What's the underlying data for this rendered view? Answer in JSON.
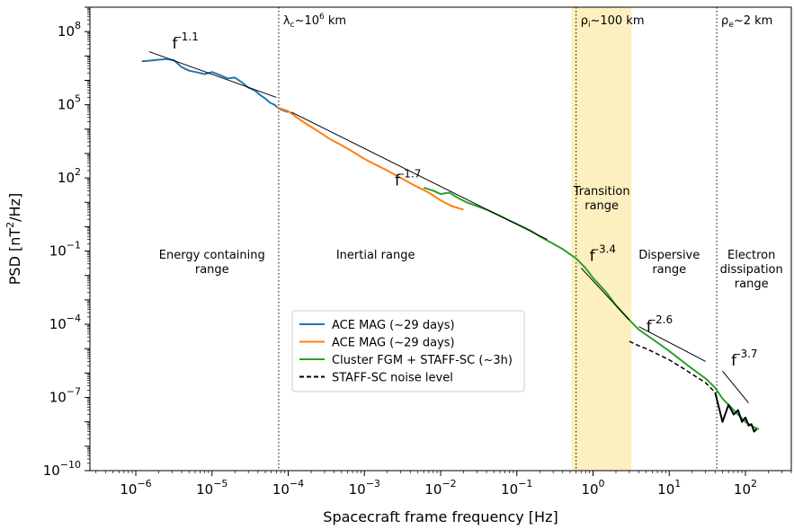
{
  "chart_data": {
    "type": "line",
    "title": "",
    "xlabel": "Spacecraft frame frequency [Hz]",
    "ylabel_main": "PSD [nT",
    "ylabel_sup": "2",
    "ylabel_end": "/Hz]",
    "xscale": "log",
    "yscale": "log",
    "xlim": [
      2.5e-07,
      400
    ],
    "ylim": [
      1e-10,
      1000000000.0
    ],
    "grid": false,
    "legend_position": "center-left",
    "x_ticks": [
      {
        "base": "10",
        "exp": "−6",
        "value": 1e-06
      },
      {
        "base": "10",
        "exp": "−5",
        "value": 1e-05
      },
      {
        "base": "10",
        "exp": "−4",
        "value": 0.0001
      },
      {
        "base": "10",
        "exp": "−3",
        "value": 0.001
      },
      {
        "base": "10",
        "exp": "−2",
        "value": 0.01
      },
      {
        "base": "10",
        "exp": "−1",
        "value": 0.1
      },
      {
        "base": "10",
        "exp": "0",
        "value": 1
      },
      {
        "base": "10",
        "exp": "1",
        "value": 10
      },
      {
        "base": "10",
        "exp": "2",
        "value": 100
      }
    ],
    "y_ticks": [
      {
        "base": "10",
        "exp": "−10",
        "value": 1e-10
      },
      {
        "base": "10",
        "exp": "−7",
        "value": 1e-07
      },
      {
        "base": "10",
        "exp": "−4",
        "value": 0.0001
      },
      {
        "base": "10",
        "exp": "−1",
        "value": 0.1
      },
      {
        "base": "10",
        "exp": "2",
        "value": 100
      },
      {
        "base": "10",
        "exp": "5",
        "value": 100000.0
      },
      {
        "base": "10",
        "exp": "8",
        "value": 100000000.0
      }
    ],
    "series": [
      {
        "name": "ACE MAG (~29 days)",
        "color": "#1f77b4",
        "style": "solid",
        "x": [
          1.2e-06,
          1.6e-06,
          2e-06,
          2.6e-06,
          3.2e-06,
          4e-06,
          5e-06,
          6.5e-06,
          8e-06,
          1e-05,
          1.3e-05,
          1.6e-05,
          2e-05,
          2.5e-05,
          3e-05,
          3.6e-05,
          4.3e-05,
          5e-05,
          5.8e-05,
          6.6e-05,
          7.5e-05,
          8.5e-05,
          0.0001
        ],
        "y": [
          6000000.0,
          6500000.0,
          7000000.0,
          7500000.0,
          6500000.0,
          3500000.0,
          2500000.0,
          2100000.0,
          1800000.0,
          2200000.0,
          1600000.0,
          1200000.0,
          1300000.0,
          800000.0,
          500000.0,
          400000.0,
          250000.0,
          180000.0,
          120000.0,
          100000.0,
          70000.0,
          60000.0,
          50000.0
        ]
      },
      {
        "name": "ACE MAG (~29 days)",
        "color": "#ff7f0e",
        "style": "solid",
        "x": [
          7e-05,
          0.0001,
          0.00013,
          0.00018,
          0.00025,
          0.00035,
          0.0005,
          0.0007,
          0.001,
          0.0014,
          0.002,
          0.003,
          0.0045,
          0.007,
          0.01,
          0.014,
          0.02
        ],
        "y": [
          80000.0,
          55000.0,
          30000.0,
          15000.0,
          8000.0,
          4000.0,
          2200.0,
          1200.0,
          600,
          350,
          200,
          100,
          50,
          25,
          12,
          7,
          5
        ]
      },
      {
        "name": "Cluster FGM + STAFF-SC (~3h)",
        "color": "#2ca02c",
        "style": "solid",
        "x": [
          0.006,
          0.008,
          0.01,
          0.013,
          0.017,
          0.022,
          0.03,
          0.04,
          0.06,
          0.08,
          0.1,
          0.15,
          0.2,
          0.3,
          0.4,
          0.6,
          0.8,
          1,
          1.5,
          2,
          3,
          4,
          6,
          10,
          15,
          20,
          30,
          40,
          50,
          70,
          100,
          130,
          150
        ],
        "y": [
          40,
          30,
          22,
          25,
          15,
          10,
          7,
          5,
          2.8,
          1.8,
          1.3,
          0.7,
          0.4,
          0.2,
          0.12,
          0.05,
          0.02,
          0.008,
          0.002,
          0.0006,
          0.00015,
          6e-05,
          2.5e-05,
          8e-06,
          3e-06,
          1.5e-06,
          6e-07,
          2.5e-07,
          9e-08,
          3e-08,
          1e-08,
          6e-09,
          5e-09
        ]
      },
      {
        "name": "STAFF-SC noise level",
        "color": "#000000",
        "style": "dashed",
        "x": [
          3,
          4,
          5,
          7,
          10,
          15,
          20,
          30,
          40
        ],
        "y": [
          2e-05,
          1.3e-05,
          1e-05,
          6e-06,
          3.5e-06,
          1.6e-06,
          9e-07,
          4e-07,
          1.6e-07
        ]
      },
      {
        "name": "",
        "color": "#000000",
        "style": "solid",
        "x": [
          40,
          50,
          60,
          70,
          80,
          90,
          100,
          110,
          120,
          130,
          140
        ],
        "y": [
          1.6e-07,
          1e-08,
          5e-08,
          2e-08,
          3e-08,
          1e-08,
          1.5e-08,
          7e-09,
          8e-09,
          4e-09,
          5e-09
        ]
      }
    ],
    "fits": [
      {
        "base": "f",
        "exp": "-1.1",
        "x": [
          1.5e-06,
          7e-05
        ],
        "y": [
          15000000.0,
          200000.0
        ]
      },
      {
        "base": "f",
        "exp": "-1.7",
        "x": [
          0.00011,
          0.25
        ],
        "y": [
          50000.0,
          0.3
        ]
      },
      {
        "base": "f",
        "exp": "-3.4",
        "x": [
          0.7,
          3
        ],
        "y": [
          0.02,
          0.00015
        ]
      },
      {
        "base": "f",
        "exp": "-2.6",
        "x": [
          4,
          30
        ],
        "y": [
          8e-05,
          3e-06
        ]
      },
      {
        "base": "f",
        "exp": "-3.7",
        "x": [
          50,
          110
        ],
        "y": [
          1.2e-06,
          6e-08
        ]
      }
    ],
    "fit_labels": [
      {
        "base": "f",
        "exp": "-1.1",
        "x": 3e-06,
        "y": 20000000.0
      },
      {
        "base": "f",
        "exp": "-1.7",
        "x": 0.0025,
        "y": 50.0
      },
      {
        "base": "f",
        "exp": "-3.4",
        "x": 0.9,
        "y": 0.04
      },
      {
        "base": "f",
        "exp": "-2.6",
        "x": 5,
        "y": 5e-05
      },
      {
        "base": "f",
        "exp": "-3.7",
        "x": 65,
        "y": 2e-06
      }
    ],
    "vlines": [
      {
        "x": 7.5e-05,
        "label_main": "λ",
        "label_sub": "c",
        "label_rest": "~10",
        "label_sup": "6",
        "label_end": " km"
      },
      {
        "x": 0.6,
        "label_main": "ρ",
        "label_sub": "i",
        "label_rest": "~100 km",
        "label_sup": "",
        "label_end": ""
      },
      {
        "x": 42,
        "label_main": "ρ",
        "label_sub": "e",
        "label_rest": "~2 km",
        "label_sup": "",
        "label_end": ""
      }
    ],
    "shaded_band": {
      "x": [
        0.52,
        3.2
      ],
      "color": "#fdf0c0"
    },
    "range_labels": [
      {
        "lines": [
          "Energy containing",
          "range"
        ],
        "x": 1e-05,
        "y": 0.05
      },
      {
        "lines": [
          "Inertial range"
        ],
        "x": 0.0014,
        "y": 0.05
      },
      {
        "lines": [
          "Transition",
          "range"
        ],
        "x": 1.3,
        "y": 20
      },
      {
        "lines": [
          "Dispersive",
          "range"
        ],
        "x": 10,
        "y": 0.05
      },
      {
        "lines": [
          "Electron",
          "dissipation",
          "range"
        ],
        "x": 120,
        "y": 0.05
      }
    ]
  }
}
